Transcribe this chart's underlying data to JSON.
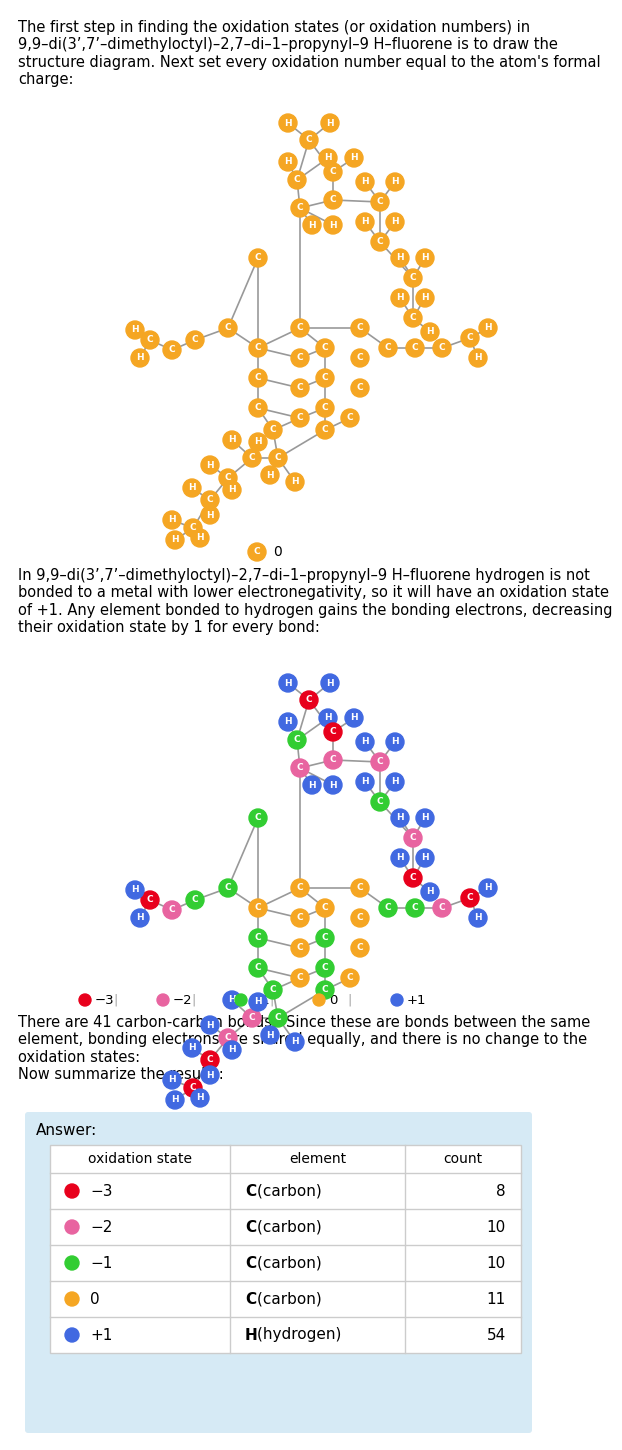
{
  "orange": "#F5A623",
  "red": "#E8001C",
  "pink": "#E864A0",
  "green": "#32CD32",
  "blue": "#4169E1",
  "gray_line": "#999999",
  "bg_color": "#D6EAF5",
  "text1": "The first step in finding the oxidation states (or oxidation numbers) in\n9,9–di(3’,7’–dimethyloctyl)–2,7–di–1–propynyl–9 H–fluorene is to draw the\nstructure diagram. Next set every oxidation number equal to the atom's formal\ncharge:",
  "text2": "In 9,9–di(3’,7’–dimethyloctyl)–2,7–di–1–propynyl–9 H–fluorene hydrogen is not\nbonded to a metal with lower electronegativity, so it will have an oxidation state\nof +1. Any element bonded to hydrogen gains the bonding electrons, decreasing\ntheir oxidation state by 1 for every bond:",
  "text3": "There are 41 carbon-carbon bonds.  Since these are bonds between the same\nelement, bonding electrons are shared equally, and there is no change to the\noxidation states:\nNow summarize the results:",
  "row_states": [
    "−3",
    "−2",
    "−1",
    "0",
    "+1"
  ],
  "row_dot_colors": [
    "#E8001C",
    "#E864A0",
    "#32CD32",
    "#F5A623",
    "#4169E1"
  ],
  "row_elements": [
    "C (carbon)",
    "C (carbon)",
    "C (carbon)",
    "C (carbon)",
    "H (hydrogen)"
  ],
  "row_counts": [
    "8",
    "10",
    "10",
    "11",
    "54"
  ]
}
